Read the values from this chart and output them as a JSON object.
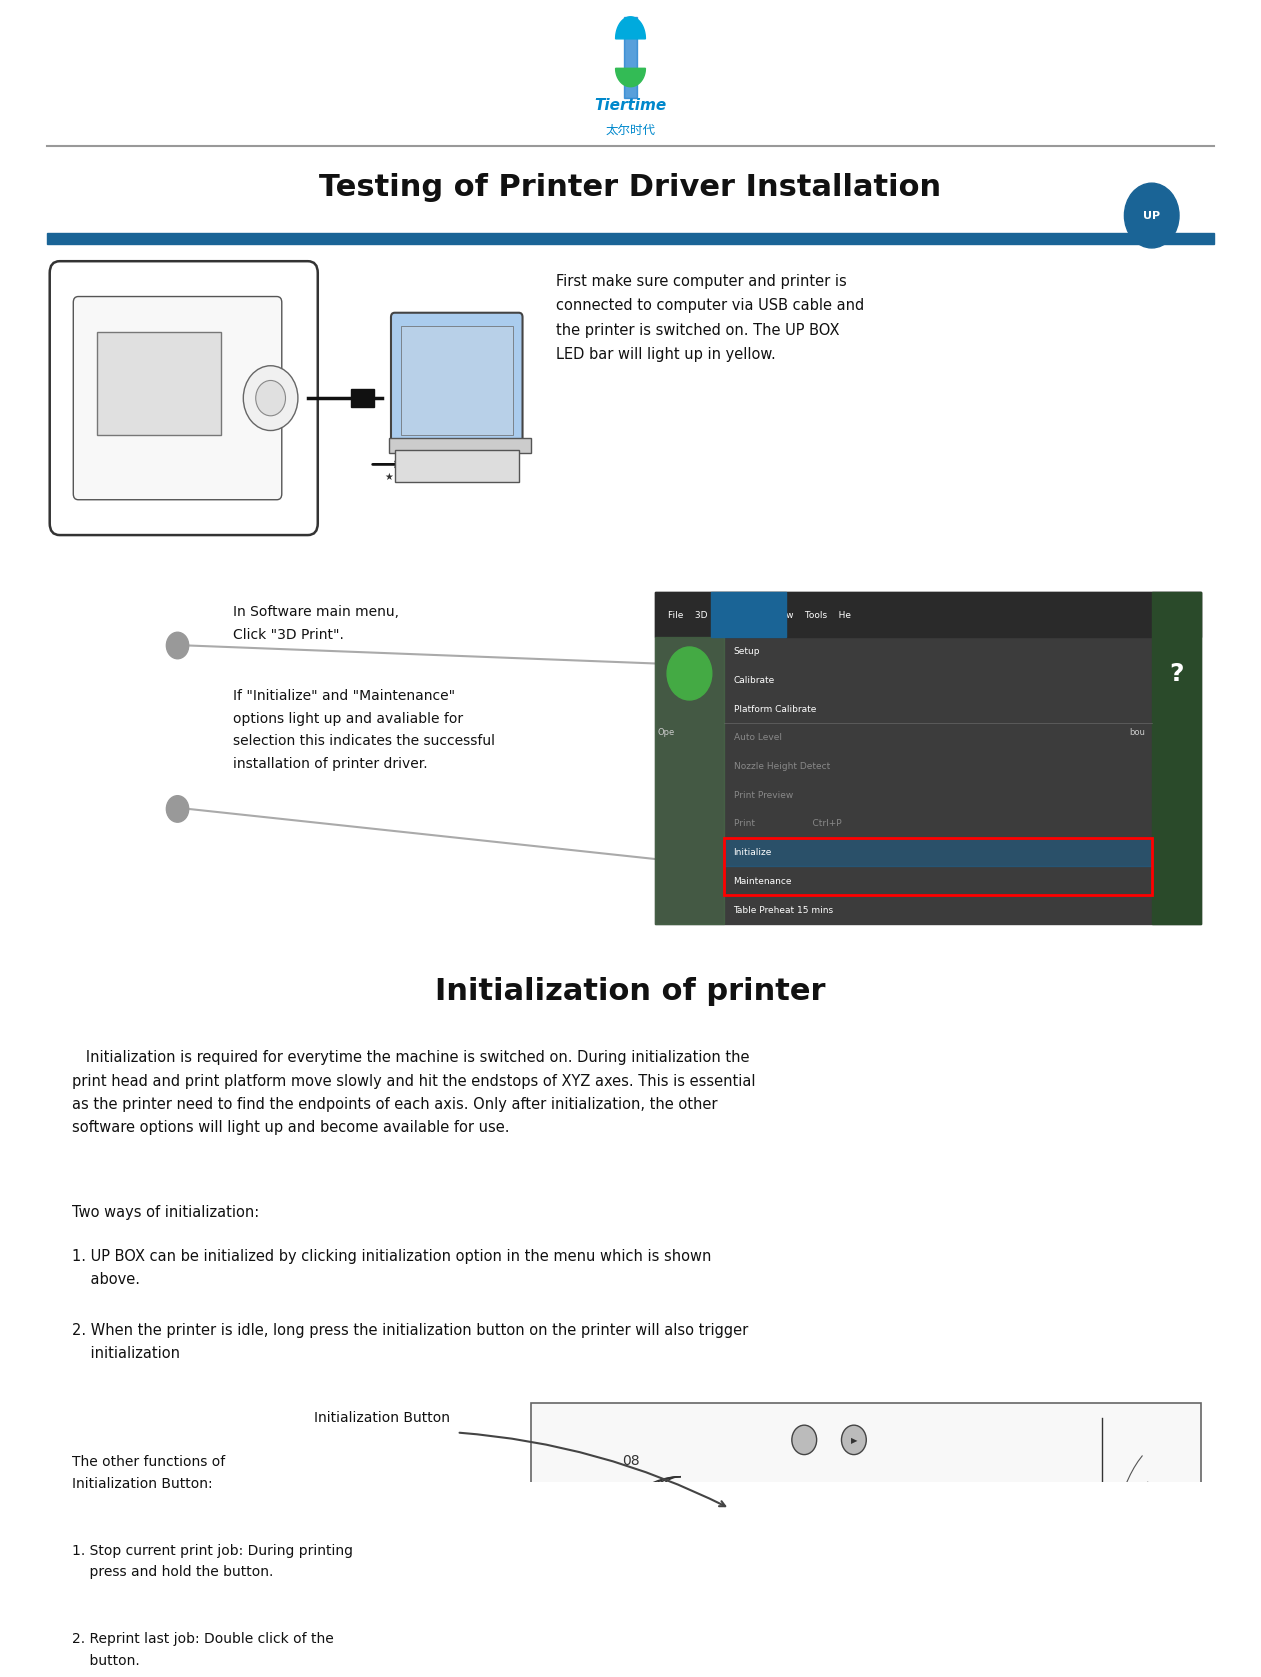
{
  "page_width": 12.41,
  "page_height": 16.36,
  "bg_color": "#ffffff",
  "title_section": "Testing of Printer Driver Installation",
  "title_font_size": 22,
  "header_line_color": "#808080",
  "blue_bar_color": "#1a6496",
  "up_badge_color": "#1a6496",
  "up_badge_text": "UP",
  "section2_title": "Initialization of printer",
  "section2_font_size": 22,
  "body_font_size": 10.5,
  "label_font_size": 10,
  "page_number": "08",
  "text_usb": "First make sure computer and printer is\nconnected to computer via USB cable and\nthe printer is switched on. The UP BOX\nLED bar will light up in yellow.",
  "text_software_label": "In Software main menu,\nClick \"3D Print\".",
  "text_initialize_label": "If \"Initialize\" and \"Maintenance\"\noptions light up and avaliable for\nselection this indicates the successful\ninstallation of printer driver.",
  "text_init_body": "   Initialization is required for everytime the machine is switched on. During initialization the\nprint head and print platform move slowly and hit the endstops of XYZ axes. This is essential\nas the printer need to find the endpoints of each axis. Only after initialization, the other\nsoftware options will light up and become available for use.",
  "text_two_ways": "Two ways of initialization:",
  "text_way1": "1. UP BOX can be initialized by clicking initialization option in the menu which is shown\n    above.",
  "text_way2": "2. When the printer is idle, long press the initialization button on the printer will also trigger\n    initialization",
  "text_init_btn_label": "Initialization Button",
  "text_other_functions": "The other functions of\nInitialization Button:",
  "text_stop": "1. Stop current print job: During printing\n    press and hold the button.",
  "text_reprint": "2. Reprint last job: Double click of the\n    button.",
  "menu_bg": "#3c3c3c",
  "menu_highlight": "#555555",
  "menu_text_color": "#ffffff",
  "menu_disabled_color": "#888888",
  "menu_items": [
    "Setup",
    "Calibrate",
    "Platform Calibrate",
    "Auto Level",
    "Nozzle Height Detect",
    "Print Preview",
    "Print                    Ctrl+P",
    "Initialize",
    "Maintenance",
    "Table Preheat 15 mins"
  ],
  "menu_header": "File    3D Print    Edit    View    Tools    He",
  "red_box_items": [
    "Initialize",
    "Maintenance"
  ]
}
